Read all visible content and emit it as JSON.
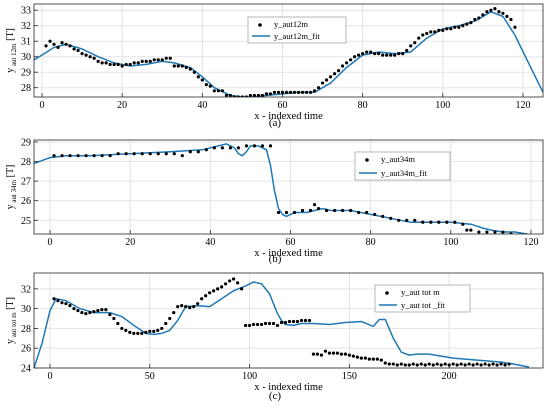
{
  "chart_data": [
    {
      "type": "scatter",
      "panel_label": "(a)",
      "xlabel": "x - indexed time",
      "ylabel_main": "y",
      "ylabel_sub": "aut 12m",
      "ylabel_unit": "[T]",
      "xlim": [
        -2,
        125
      ],
      "ylim": [
        27.4,
        33.4
      ],
      "xticks": [
        0,
        20,
        40,
        60,
        80,
        100,
        120
      ],
      "yticks": [
        28,
        29,
        30,
        31,
        32,
        33
      ],
      "grid": true,
      "legend_position": "top-center",
      "colors": {
        "points": "#000000",
        "fit": "#1f77b4"
      },
      "series": [
        {
          "name": "y_aut12m",
          "kind": "points",
          "x": [
            1,
            2,
            3,
            4,
            5,
            6,
            7,
            8,
            9,
            10,
            11,
            12,
            13,
            14,
            15,
            16,
            17,
            18,
            19,
            20,
            21,
            22,
            23,
            24,
            25,
            26,
            27,
            28,
            29,
            30,
            31,
            32,
            33,
            34,
            35,
            36,
            37,
            38,
            39,
            40,
            41,
            42,
            43,
            44,
            45,
            46,
            47,
            48,
            49,
            50,
            51,
            52,
            53,
            54,
            55,
            56,
            57,
            58,
            59,
            60,
            61,
            62,
            63,
            64,
            65,
            66,
            67,
            68,
            69,
            70,
            71,
            72,
            73,
            74,
            75,
            76,
            77,
            78,
            79,
            80,
            81,
            82,
            83,
            84,
            85,
            86,
            87,
            88,
            89,
            90,
            91,
            92,
            93,
            94,
            95,
            96,
            97,
            98,
            99,
            100,
            101,
            102,
            103,
            104,
            105,
            106,
            107,
            108,
            109,
            110,
            111,
            112,
            113,
            114,
            115,
            116,
            117,
            118
          ],
          "y": [
            30.7,
            31.0,
            30.8,
            30.6,
            30.9,
            30.8,
            30.7,
            30.5,
            30.4,
            30.2,
            30.1,
            30.0,
            29.9,
            29.7,
            29.6,
            29.6,
            29.5,
            29.5,
            29.5,
            29.4,
            29.5,
            29.5,
            29.6,
            29.6,
            29.7,
            29.7,
            29.7,
            29.8,
            29.8,
            29.8,
            29.9,
            29.9,
            29.4,
            29.4,
            29.4,
            29.3,
            29.2,
            29.0,
            28.7,
            28.5,
            28.2,
            28.1,
            27.8,
            27.8,
            27.8,
            27.5,
            27.5,
            27.4,
            27.4,
            27.4,
            27.4,
            27.5,
            27.5,
            27.5,
            27.5,
            27.6,
            27.6,
            27.7,
            27.7,
            27.7,
            27.7,
            27.7,
            27.7,
            27.7,
            27.7,
            27.7,
            27.7,
            27.8,
            28.0,
            28.3,
            28.5,
            28.7,
            28.9,
            29.1,
            29.4,
            29.6,
            29.8,
            30.0,
            30.1,
            30.2,
            30.3,
            30.3,
            30.2,
            30.2,
            30.1,
            30.1,
            30.1,
            30.1,
            30.2,
            30.2,
            30.4,
            30.7,
            30.9,
            31.2,
            31.4,
            31.5,
            31.6,
            31.6,
            31.7,
            31.7,
            31.8,
            31.8,
            31.9,
            31.9,
            32.0,
            32.1,
            32.2,
            32.4,
            32.5,
            32.7,
            32.9,
            33.0,
            33.1,
            32.9,
            32.8,
            32.6,
            32.4,
            31.9
          ]
        },
        {
          "name": "y_aut12m_fit",
          "kind": "line",
          "x": [
            -2,
            0,
            3,
            6,
            10,
            14,
            18,
            22,
            26,
            30,
            33,
            37,
            40,
            43,
            47,
            50,
            53,
            56,
            60,
            64,
            68,
            72,
            76,
            80,
            84,
            88,
            92,
            96,
            100,
            104,
            108,
            112,
            115,
            118,
            121,
            125
          ],
          "y": [
            29.8,
            30.1,
            30.6,
            30.8,
            30.5,
            30.0,
            29.6,
            29.4,
            29.5,
            29.7,
            29.6,
            29.3,
            28.7,
            28.0,
            27.5,
            27.4,
            27.4,
            27.5,
            27.6,
            27.7,
            27.7,
            28.3,
            29.3,
            30.1,
            30.3,
            30.2,
            30.3,
            31.2,
            31.8,
            32.0,
            32.3,
            32.9,
            32.6,
            31.4,
            29.8,
            27.7
          ]
        }
      ]
    },
    {
      "type": "scatter",
      "panel_label": "(b)",
      "xlabel": "x - indexed time",
      "ylabel_main": "y",
      "ylabel_sub": "aut 34m",
      "ylabel_unit": "[T]",
      "xlim": [
        -4,
        123
      ],
      "ylim": [
        24.3,
        29.1
      ],
      "xticks": [
        0,
        20,
        40,
        60,
        80,
        100,
        120
      ],
      "yticks": [
        25,
        26,
        27,
        28,
        29
      ],
      "grid": true,
      "legend_position": "right",
      "colors": {
        "points": "#000000",
        "fit": "#1f77b4"
      },
      "series": [
        {
          "name": "y_aut34m",
          "kind": "points",
          "x": [
            1,
            3,
            5,
            7,
            9,
            11,
            13,
            15,
            17,
            19,
            21,
            23,
            25,
            27,
            29,
            31,
            33,
            35,
            37,
            39,
            41,
            43,
            45,
            47,
            49,
            51,
            53,
            55,
            57,
            59,
            61,
            63,
            65,
            66,
            67,
            69,
            71,
            73,
            75,
            77,
            79,
            81,
            83,
            85,
            87,
            89,
            91,
            93,
            95,
            97,
            99,
            101,
            103,
            104,
            105,
            107,
            109,
            111,
            113,
            115
          ],
          "y": [
            28.3,
            28.3,
            28.3,
            28.3,
            28.3,
            28.3,
            28.3,
            28.3,
            28.4,
            28.4,
            28.4,
            28.4,
            28.4,
            28.4,
            28.4,
            28.4,
            28.3,
            28.5,
            28.5,
            28.6,
            28.7,
            28.7,
            28.7,
            28.7,
            28.8,
            28.8,
            28.8,
            28.8,
            25.4,
            25.4,
            25.4,
            25.5,
            25.5,
            25.8,
            25.6,
            25.5,
            25.5,
            25.5,
            25.5,
            25.4,
            25.4,
            25.3,
            25.2,
            25.1,
            25.0,
            25.0,
            25.0,
            24.9,
            24.9,
            24.9,
            24.9,
            24.9,
            24.8,
            24.5,
            24.5,
            24.4,
            24.4,
            24.4,
            24.4,
            24.3
          ]
        },
        {
          "name": "y_aut34m_fit",
          "kind": "line",
          "x": [
            -4,
            0,
            4,
            10,
            20,
            30,
            38,
            42,
            44,
            46,
            47,
            48,
            49,
            50,
            52,
            54,
            55,
            56,
            57,
            58,
            59,
            60,
            61,
            62,
            64,
            66,
            68,
            70,
            75,
            80,
            85,
            90,
            95,
            100,
            105,
            108,
            110,
            113,
            116,
            119,
            123
          ],
          "y": [
            27.9,
            28.2,
            28.3,
            28.3,
            28.4,
            28.5,
            28.6,
            28.8,
            28.9,
            28.7,
            28.4,
            28.3,
            28.5,
            28.8,
            28.8,
            28.6,
            27.8,
            26.5,
            25.6,
            25.3,
            25.2,
            25.3,
            25.4,
            25.4,
            25.4,
            25.5,
            25.6,
            25.5,
            25.5,
            25.3,
            25.1,
            24.9,
            24.9,
            24.9,
            24.8,
            24.6,
            24.5,
            24.4,
            24.4,
            24.3,
            23.9
          ]
        }
      ]
    },
    {
      "type": "scatter",
      "panel_label": "(c)",
      "xlabel": "x - indexed time",
      "ylabel_main": "y",
      "ylabel_sub": "aut tot m",
      "ylabel_unit": "[T]",
      "xlim": [
        -8,
        247
      ],
      "ylim": [
        24,
        33.6
      ],
      "xticks": [
        0,
        50,
        100,
        150,
        200
      ],
      "yticks": [
        24,
        26,
        28,
        30,
        32
      ],
      "grid": true,
      "legend_position": "top-right",
      "colors": {
        "points": "#000000",
        "fit": "#1f77b4"
      },
      "series": [
        {
          "name": "y_aut tot m",
          "kind": "points",
          "x": [
            2,
            4,
            6,
            8,
            10,
            12,
            14,
            16,
            18,
            20,
            22,
            24,
            26,
            28,
            30,
            32,
            34,
            36,
            38,
            40,
            42,
            44,
            46,
            48,
            50,
            52,
            54,
            56,
            58,
            60,
            62,
            64,
            66,
            68,
            70,
            72,
            74,
            76,
            78,
            80,
            82,
            84,
            86,
            88,
            90,
            92,
            94,
            96,
            98,
            100,
            102,
            104,
            106,
            108,
            110,
            112,
            114,
            116,
            118,
            120,
            122,
            124,
            126,
            128,
            130,
            132,
            134,
            136,
            138,
            140,
            142,
            144,
            146,
            148,
            150,
            152,
            154,
            156,
            158,
            160,
            162,
            164,
            166,
            168,
            170,
            172,
            174,
            176,
            178,
            180,
            182,
            184,
            186,
            188,
            190,
            192,
            194,
            196,
            198,
            200,
            202,
            204,
            206,
            208,
            210,
            212,
            214,
            216,
            218,
            220,
            222,
            224,
            226,
            228,
            230
          ],
          "y": [
            31.0,
            30.8,
            30.6,
            30.5,
            30.3,
            30.0,
            29.8,
            29.6,
            29.5,
            29.6,
            29.7,
            29.8,
            29.9,
            29.9,
            29.4,
            29.0,
            28.5,
            28.0,
            27.8,
            27.6,
            27.5,
            27.5,
            27.5,
            27.6,
            27.7,
            27.7,
            27.8,
            28.0,
            28.5,
            29.0,
            29.6,
            30.2,
            30.3,
            30.2,
            30.1,
            30.2,
            30.5,
            31.0,
            31.3,
            31.6,
            31.8,
            32.0,
            32.2,
            32.5,
            32.8,
            33.0,
            32.6,
            32.0,
            28.3,
            28.3,
            28.4,
            28.4,
            28.4,
            28.5,
            28.5,
            28.5,
            28.3,
            28.6,
            28.6,
            28.7,
            28.7,
            28.7,
            28.8,
            28.8,
            28.8,
            25.4,
            25.4,
            25.3,
            25.7,
            25.5,
            25.5,
            25.5,
            25.4,
            25.4,
            25.3,
            25.2,
            25.1,
            25.0,
            25.0,
            24.9,
            24.9,
            24.9,
            24.8,
            24.5,
            24.4,
            24.4,
            24.3,
            24.4,
            24.3,
            24.3,
            24.4,
            24.3,
            24.4,
            24.3,
            24.4,
            24.3,
            24.4,
            24.3,
            24.4,
            24.3,
            24.4,
            24.3,
            24.4,
            24.3,
            24.4,
            24.3,
            24.4,
            24.3,
            24.4,
            24.3,
            24.4,
            24.3,
            24.4,
            24.3,
            24.4
          ]
        },
        {
          "name": "y_aut tot _fit",
          "kind": "line",
          "x": [
            -8,
            -4,
            0,
            3,
            8,
            15,
            22,
            30,
            36,
            42,
            48,
            52,
            56,
            60,
            64,
            68,
            74,
            80,
            86,
            92,
            98,
            102,
            106,
            110,
            114,
            116,
            118,
            122,
            126,
            132,
            140,
            148,
            156,
            162,
            165,
            168,
            172,
            176,
            180,
            184,
            190,
            196,
            202,
            208,
            214,
            220,
            226,
            232,
            240
          ],
          "y": [
            24.0,
            26.5,
            29.8,
            31.0,
            30.8,
            30.0,
            29.6,
            29.6,
            29.2,
            28.3,
            27.5,
            27.4,
            27.5,
            27.8,
            28.8,
            30.2,
            30.3,
            30.2,
            31.0,
            31.8,
            32.3,
            32.7,
            32.5,
            31.5,
            29.5,
            28.8,
            28.4,
            28.3,
            28.5,
            28.5,
            28.4,
            28.6,
            28.7,
            28.2,
            28.9,
            28.9,
            27.0,
            25.6,
            25.3,
            25.4,
            25.4,
            25.2,
            25.0,
            24.9,
            24.8,
            24.7,
            24.6,
            24.4,
            24.1
          ]
        }
      ]
    }
  ]
}
